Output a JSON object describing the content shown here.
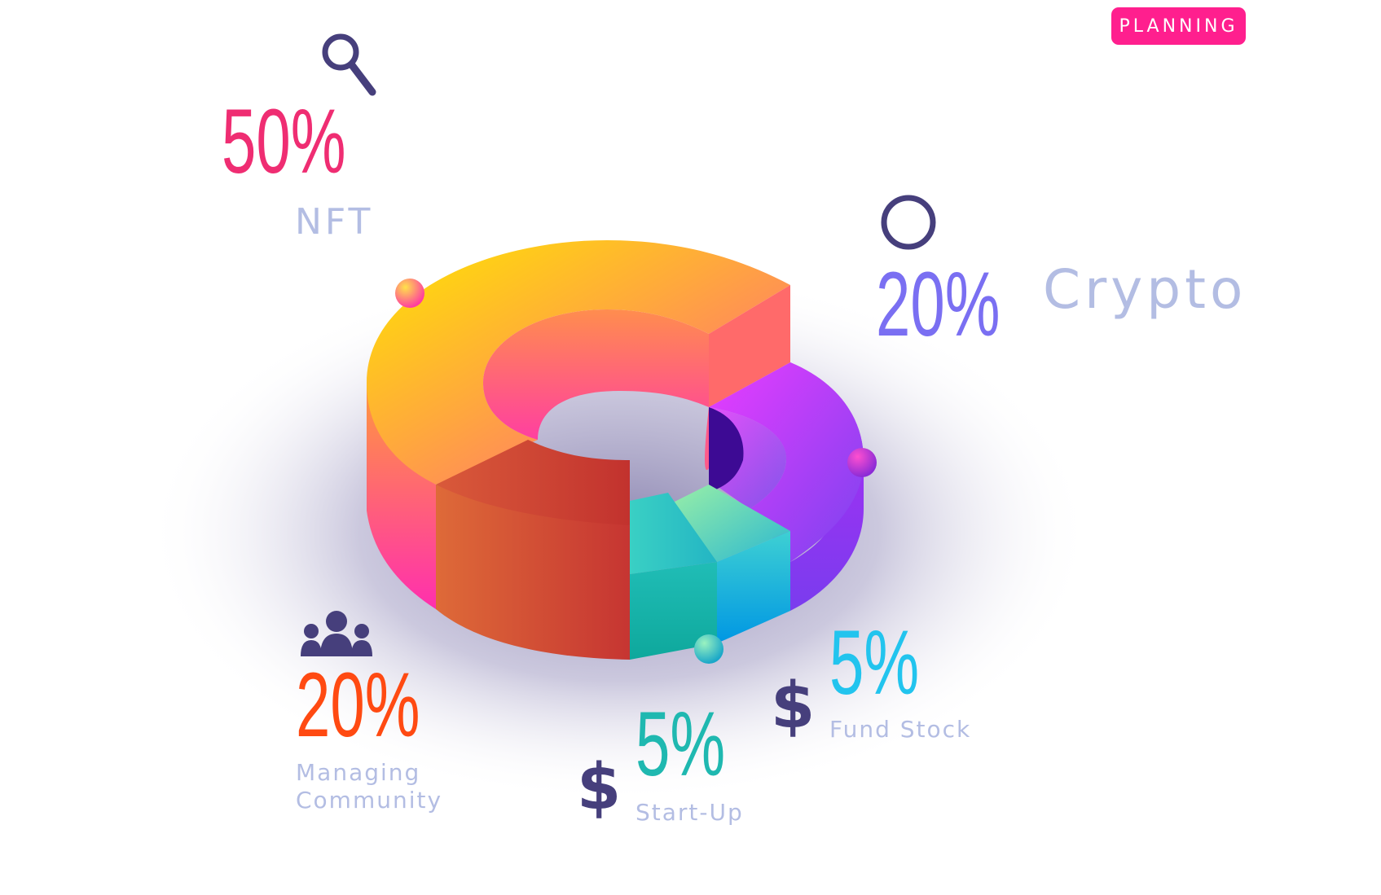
{
  "badge": {
    "label": "PLANNING"
  },
  "chart_data": {
    "type": "pie",
    "categories": [
      "NFT",
      "Crypto",
      "Fund Stock",
      "Start-Up",
      "Managing Community"
    ],
    "values": [
      50,
      20,
      5,
      5,
      20
    ],
    "value_labels": [
      "50%",
      "20%",
      "5%",
      "5%",
      "20%"
    ],
    "labels": [
      "NFT",
      "Crypto",
      "Fund Stock",
      "Start-Up",
      "Managing\nCommunity"
    ],
    "colors": [
      "#ff8a4c",
      "#a23ff2",
      "#34c7d6",
      "#1fb8b0",
      "#e15a33"
    ]
  },
  "icons": {
    "nft": "magnifier-icon",
    "crypto": "circle-icon",
    "fund_stock": "dollar-icon",
    "start_up": "dollar-icon",
    "community": "people-icon"
  },
  "icon_colors": {
    "primary": "#463f7c"
  },
  "dollar_glyph": "$"
}
